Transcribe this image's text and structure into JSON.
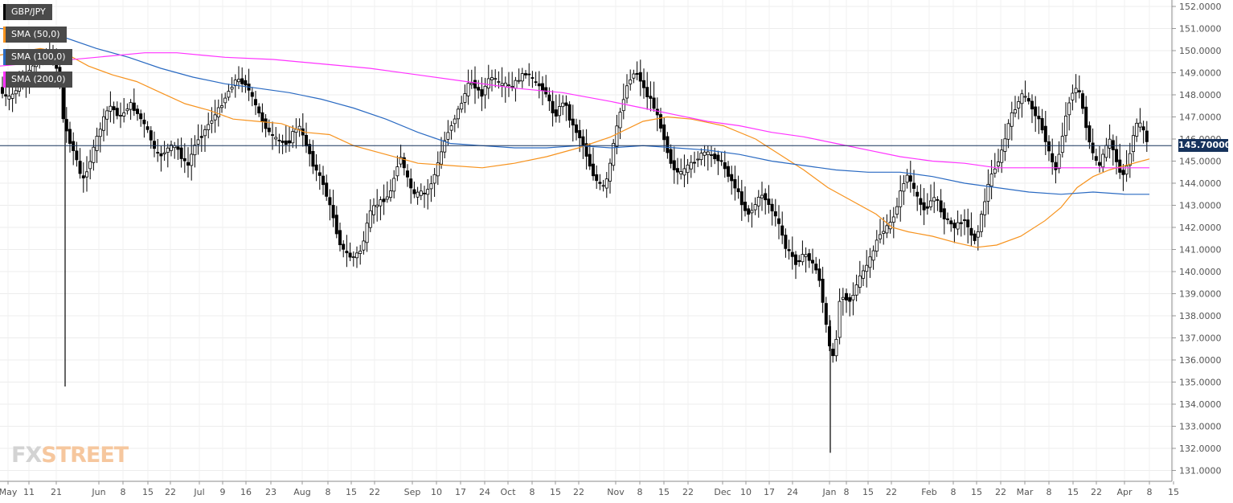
{
  "legend": [
    {
      "label": "GBP/JPY",
      "color": "#000000"
    },
    {
      "label": "SMA (50,0)",
      "color": "#f7931e"
    },
    {
      "label": "SMA (100,0)",
      "color": "#2a6ac2"
    },
    {
      "label": "SMA (200,0)",
      "color": "#ff33ff"
    }
  ],
  "watermark": {
    "part1": "FX",
    "part2": "STREET"
  },
  "current_price": "145.70000",
  "chart_data": {
    "type": "candlestick",
    "symbol": "GBP/JPY",
    "y_ticks": [
      "152.0000",
      "151.0000",
      "150.0000",
      "149.0000",
      "148.0000",
      "147.0000",
      "146.0000",
      "145.0000",
      "144.0000",
      "143.0000",
      "142.0000",
      "141.0000",
      "140.0000",
      "139.0000",
      "138.0000",
      "137.0000",
      "136.0000",
      "135.0000",
      "134.0000",
      "133.0000",
      "132.0000",
      "131.0000"
    ],
    "ylim": [
      130.5,
      152.2
    ],
    "x_ticks": [
      "May",
      "11",
      "21",
      "Jun",
      "8",
      "15",
      "22",
      "Jul",
      "9",
      "16",
      "23",
      "Aug",
      "8",
      "15",
      "22",
      "Sep",
      "10",
      "17",
      "24",
      "Oct",
      "8",
      "15",
      "22",
      "Nov",
      "8",
      "15",
      "22",
      "Dec",
      "10",
      "17",
      "24",
      "Jan",
      "8",
      "15",
      "22",
      "Feb",
      "8",
      "15",
      "22",
      "Mar",
      "8",
      "15",
      "22",
      "Apr",
      "8",
      "15"
    ],
    "grid": true,
    "current_price": 145.7,
    "legend_position": "top-left",
    "price_path": [
      [
        0,
        148.4
      ],
      [
        6,
        148.0
      ],
      [
        12,
        147.8
      ],
      [
        20,
        148.1
      ],
      [
        28,
        148.6
      ],
      [
        36,
        148.9
      ],
      [
        44,
        149.3
      ],
      [
        52,
        149.6
      ],
      [
        60,
        149.8
      ],
      [
        68,
        149.7
      ],
      [
        76,
        148.8
      ],
      [
        80,
        147.0
      ],
      [
        86,
        146.2
      ],
      [
        92,
        145.6
      ],
      [
        98,
        145.0
      ],
      [
        104,
        144.0
      ],
      [
        110,
        144.6
      ],
      [
        116,
        145.2
      ],
      [
        122,
        146.0
      ],
      [
        128,
        146.6
      ],
      [
        134,
        147.2
      ],
      [
        140,
        147.5
      ],
      [
        146,
        147.2
      ],
      [
        152,
        147.0
      ],
      [
        158,
        147.3
      ],
      [
        164,
        147.6
      ],
      [
        170,
        147.3
      ],
      [
        176,
        147.0
      ],
      [
        182,
        146.6
      ],
      [
        188,
        146.2
      ],
      [
        194,
        145.5
      ],
      [
        200,
        145.2
      ],
      [
        206,
        145.4
      ],
      [
        212,
        145.6
      ],
      [
        218,
        145.7
      ],
      [
        224,
        145.5
      ],
      [
        230,
        145.0
      ],
      [
        236,
        144.8
      ],
      [
        242,
        145.5
      ],
      [
        248,
        146.0
      ],
      [
        254,
        146.2
      ],
      [
        260,
        146.6
      ],
      [
        266,
        146.9
      ],
      [
        272,
        147.2
      ],
      [
        278,
        147.6
      ],
      [
        284,
        148.0
      ],
      [
        290,
        148.4
      ],
      [
        296,
        148.7
      ],
      [
        302,
        148.6
      ],
      [
        308,
        148.5
      ],
      [
        314,
        148.0
      ],
      [
        320,
        147.5
      ],
      [
        326,
        147.0
      ],
      [
        332,
        146.6
      ],
      [
        338,
        146.2
      ],
      [
        344,
        146.0
      ],
      [
        350,
        145.9
      ],
      [
        356,
        145.8
      ],
      [
        362,
        145.9
      ],
      [
        368,
        146.4
      ],
      [
        374,
        146.6
      ],
      [
        380,
        146.0
      ],
      [
        386,
        145.5
      ],
      [
        392,
        144.8
      ],
      [
        398,
        144.4
      ],
      [
        404,
        144.0
      ],
      [
        410,
        143.2
      ],
      [
        416,
        142.6
      ],
      [
        422,
        141.6
      ],
      [
        428,
        141.0
      ],
      [
        434,
        140.8
      ],
      [
        440,
        140.6
      ],
      [
        446,
        140.8
      ],
      [
        452,
        141.0
      ],
      [
        458,
        142.0
      ],
      [
        464,
        142.8
      ],
      [
        470,
        143.0
      ],
      [
        476,
        143.2
      ],
      [
        482,
        143.3
      ],
      [
        488,
        143.6
      ],
      [
        494,
        144.5
      ],
      [
        500,
        145.3
      ],
      [
        506,
        144.5
      ],
      [
        512,
        143.9
      ],
      [
        518,
        143.4
      ],
      [
        524,
        143.6
      ],
      [
        530,
        143.5
      ],
      [
        536,
        143.8
      ],
      [
        542,
        144.3
      ],
      [
        548,
        145.0
      ],
      [
        554,
        145.8
      ],
      [
        560,
        146.4
      ],
      [
        566,
        146.8
      ],
      [
        572,
        147.3
      ],
      [
        578,
        147.8
      ],
      [
        584,
        148.4
      ],
      [
        590,
        148.6
      ],
      [
        596,
        148.2
      ],
      [
        602,
        148.0
      ],
      [
        608,
        148.6
      ],
      [
        614,
        148.8
      ],
      [
        620,
        148.6
      ],
      [
        626,
        148.4
      ],
      [
        632,
        148.5
      ],
      [
        638,
        148.3
      ],
      [
        644,
        148.6
      ],
      [
        650,
        148.8
      ],
      [
        656,
        149.0
      ],
      [
        662,
        148.8
      ],
      [
        668,
        148.5
      ],
      [
        674,
        148.4
      ],
      [
        680,
        148.2
      ],
      [
        686,
        147.6
      ],
      [
        692,
        147.0
      ],
      [
        698,
        147.4
      ],
      [
        704,
        147.8
      ],
      [
        710,
        147.0
      ],
      [
        716,
        146.5
      ],
      [
        722,
        146.2
      ],
      [
        728,
        145.7
      ],
      [
        734,
        145.0
      ],
      [
        740,
        144.4
      ],
      [
        746,
        144.0
      ],
      [
        752,
        143.8
      ],
      [
        758,
        144.2
      ],
      [
        764,
        145.5
      ],
      [
        770,
        146.6
      ],
      [
        776,
        147.6
      ],
      [
        782,
        148.4
      ],
      [
        788,
        148.9
      ],
      [
        794,
        149.0
      ],
      [
        800,
        148.6
      ],
      [
        806,
        148.0
      ],
      [
        812,
        147.8
      ],
      [
        818,
        147.2
      ],
      [
        824,
        146.6
      ],
      [
        830,
        145.8
      ],
      [
        836,
        145.0
      ],
      [
        842,
        144.6
      ],
      [
        848,
        144.4
      ],
      [
        854,
        144.6
      ],
      [
        860,
        144.8
      ],
      [
        866,
        145.0
      ],
      [
        872,
        145.2
      ],
      [
        878,
        145.4
      ],
      [
        884,
        145.3
      ],
      [
        890,
        145.2
      ],
      [
        896,
        145.1
      ],
      [
        902,
        144.8
      ],
      [
        908,
        144.4
      ],
      [
        914,
        144.0
      ],
      [
        920,
        143.6
      ],
      [
        926,
        143.0
      ],
      [
        932,
        142.6
      ],
      [
        938,
        142.8
      ],
      [
        944,
        143.2
      ],
      [
        950,
        143.5
      ],
      [
        956,
        143.2
      ],
      [
        962,
        142.8
      ],
      [
        968,
        142.4
      ],
      [
        974,
        141.8
      ],
      [
        980,
        141.0
      ],
      [
        986,
        140.8
      ],
      [
        992,
        140.4
      ],
      [
        998,
        140.6
      ],
      [
        1004,
        140.8
      ],
      [
        1010,
        140.5
      ],
      [
        1016,
        140.2
      ],
      [
        1022,
        139.6
      ],
      [
        1028,
        138.0
      ],
      [
        1034,
        136.6
      ],
      [
        1040,
        135.9
      ],
      [
        1046,
        138.6
      ],
      [
        1052,
        139.0
      ],
      [
        1058,
        138.6
      ],
      [
        1064,
        139.0
      ],
      [
        1070,
        139.6
      ],
      [
        1076,
        140.0
      ],
      [
        1082,
        140.4
      ],
      [
        1088,
        140.8
      ],
      [
        1094,
        141.6
      ],
      [
        1100,
        141.8
      ],
      [
        1106,
        142.0
      ],
      [
        1112,
        142.3
      ],
      [
        1118,
        143.0
      ],
      [
        1124,
        143.8
      ],
      [
        1130,
        144.4
      ],
      [
        1136,
        144.0
      ],
      [
        1142,
        143.4
      ],
      [
        1148,
        143.0
      ],
      [
        1154,
        142.8
      ],
      [
        1160,
        143.2
      ],
      [
        1166,
        143.4
      ],
      [
        1172,
        142.8
      ],
      [
        1178,
        142.4
      ],
      [
        1184,
        142.2
      ],
      [
        1190,
        142.0
      ],
      [
        1196,
        142.2
      ],
      [
        1202,
        142.4
      ],
      [
        1208,
        141.8
      ],
      [
        1214,
        141.4
      ],
      [
        1220,
        142.0
      ],
      [
        1226,
        143.0
      ],
      [
        1232,
        144.0
      ],
      [
        1238,
        144.6
      ],
      [
        1244,
        145.0
      ],
      [
        1250,
        145.6
      ],
      [
        1256,
        146.6
      ],
      [
        1262,
        147.2
      ],
      [
        1268,
        147.6
      ],
      [
        1274,
        148.0
      ],
      [
        1280,
        147.8
      ],
      [
        1286,
        147.4
      ],
      [
        1292,
        147.0
      ],
      [
        1298,
        146.6
      ],
      [
        1304,
        145.8
      ],
      [
        1310,
        145.0
      ],
      [
        1316,
        144.6
      ],
      [
        1322,
        145.8
      ],
      [
        1328,
        147.0
      ],
      [
        1334,
        148.0
      ],
      [
        1340,
        148.3
      ],
      [
        1346,
        148.0
      ],
      [
        1352,
        146.8
      ],
      [
        1358,
        145.8
      ],
      [
        1364,
        145.0
      ],
      [
        1370,
        144.8
      ],
      [
        1376,
        145.4
      ],
      [
        1382,
        146.0
      ],
      [
        1388,
        145.4
      ],
      [
        1394,
        144.6
      ],
      [
        1400,
        144.4
      ],
      [
        1406,
        145.0
      ],
      [
        1412,
        146.2
      ],
      [
        1418,
        146.8
      ],
      [
        1424,
        146.4
      ],
      [
        1430,
        145.8
      ],
      [
        1434,
        145.7
      ]
    ],
    "sma": {
      "sma50": [
        [
          0,
          149.8
        ],
        [
          50,
          150.1
        ],
        [
          80,
          149.9
        ],
        [
          110,
          149.3
        ],
        [
          140,
          148.9
        ],
        [
          170,
          148.6
        ],
        [
          200,
          148.1
        ],
        [
          230,
          147.6
        ],
        [
          260,
          147.3
        ],
        [
          290,
          146.9
        ],
        [
          320,
          146.8
        ],
        [
          350,
          146.7
        ],
        [
          380,
          146.3
        ],
        [
          410,
          146.2
        ],
        [
          440,
          145.7
        ],
        [
          480,
          145.3
        ],
        [
          520,
          144.9
        ],
        [
          560,
          144.8
        ],
        [
          600,
          144.7
        ],
        [
          640,
          144.9
        ],
        [
          680,
          145.2
        ],
        [
          720,
          145.6
        ],
        [
          760,
          146.1
        ],
        [
          800,
          146.8
        ],
        [
          830,
          147.0
        ],
        [
          860,
          146.9
        ],
        [
          900,
          146.6
        ],
        [
          940,
          146.0
        ],
        [
          970,
          145.3
        ],
        [
          1000,
          144.6
        ],
        [
          1030,
          143.8
        ],
        [
          1060,
          143.2
        ],
        [
          1090,
          142.6
        ],
        [
          1110,
          142.0
        ],
        [
          1130,
          141.8
        ],
        [
          1160,
          141.6
        ],
        [
          1190,
          141.3
        ],
        [
          1215,
          141.1
        ],
        [
          1240,
          141.2
        ],
        [
          1270,
          141.6
        ],
        [
          1300,
          142.3
        ],
        [
          1320,
          142.9
        ],
        [
          1340,
          143.8
        ],
        [
          1360,
          144.3
        ],
        [
          1380,
          144.6
        ],
        [
          1400,
          144.8
        ],
        [
          1430,
          145.1
        ]
      ],
      "sma100": [
        [
          0,
          151.0
        ],
        [
          40,
          150.9
        ],
        [
          80,
          150.6
        ],
        [
          120,
          150.1
        ],
        [
          160,
          149.7
        ],
        [
          200,
          149.2
        ],
        [
          240,
          148.8
        ],
        [
          280,
          148.5
        ],
        [
          320,
          148.3
        ],
        [
          360,
          148.1
        ],
        [
          400,
          147.8
        ],
        [
          440,
          147.4
        ],
        [
          480,
          146.9
        ],
        [
          520,
          146.3
        ],
        [
          560,
          145.8
        ],
        [
          600,
          145.7
        ],
        [
          640,
          145.6
        ],
        [
          680,
          145.6
        ],
        [
          720,
          145.7
        ],
        [
          760,
          145.6
        ],
        [
          800,
          145.7
        ],
        [
          840,
          145.6
        ],
        [
          880,
          145.5
        ],
        [
          920,
          145.3
        ],
        [
          960,
          145.0
        ],
        [
          1000,
          144.8
        ],
        [
          1040,
          144.6
        ],
        [
          1080,
          144.5
        ],
        [
          1120,
          144.5
        ],
        [
          1160,
          144.3
        ],
        [
          1200,
          144.0
        ],
        [
          1240,
          143.8
        ],
        [
          1280,
          143.6
        ],
        [
          1320,
          143.5
        ],
        [
          1360,
          143.6
        ],
        [
          1400,
          143.5
        ],
        [
          1430,
          143.5
        ]
      ],
      "sma200": [
        [
          0,
          149.3
        ],
        [
          60,
          149.5
        ],
        [
          120,
          149.7
        ],
        [
          180,
          149.9
        ],
        [
          220,
          149.9
        ],
        [
          280,
          149.7
        ],
        [
          340,
          149.6
        ],
        [
          400,
          149.4
        ],
        [
          460,
          149.2
        ],
        [
          520,
          148.9
        ],
        [
          580,
          148.6
        ],
        [
          640,
          148.3
        ],
        [
          700,
          148.1
        ],
        [
          760,
          147.7
        ],
        [
          800,
          147.4
        ],
        [
          840,
          147.1
        ],
        [
          880,
          146.8
        ],
        [
          920,
          146.6
        ],
        [
          960,
          146.3
        ],
        [
          1000,
          146.1
        ],
        [
          1040,
          145.8
        ],
        [
          1080,
          145.5
        ],
        [
          1120,
          145.2
        ],
        [
          1160,
          145.0
        ],
        [
          1200,
          144.9
        ],
        [
          1240,
          144.7
        ],
        [
          1280,
          144.7
        ],
        [
          1320,
          144.7
        ],
        [
          1360,
          144.7
        ],
        [
          1400,
          144.7
        ],
        [
          1430,
          144.7
        ]
      ]
    },
    "spikes": [
      {
        "x": 81,
        "low": 134.8,
        "high": 149.0
      },
      {
        "x": 1033,
        "low": 131.8,
        "high": 137.8
      }
    ]
  }
}
